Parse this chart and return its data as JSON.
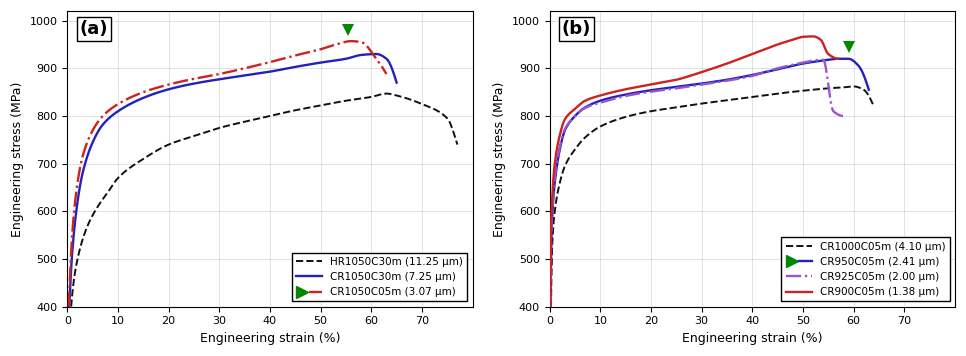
{
  "panel_a": {
    "label": "(a)",
    "curves": [
      {
        "name": "HR1050C30m (11.25 μm)",
        "color": "#111111",
        "linestyle": "dashed",
        "linewidth": 1.4,
        "points_x": [
          0,
          0.12,
          0.5,
          1.0,
          2.0,
          4.0,
          6.0,
          8.0,
          10.0,
          15.0,
          20.0,
          25.0,
          30.0,
          35.0,
          40.0,
          45.0,
          50.0,
          55.0,
          60.0,
          63.0,
          65.0,
          70.0,
          75.0,
          77.0
        ],
        "points_y": [
          0,
          100,
          350,
          430,
          500,
          570,
          610,
          640,
          670,
          710,
          740,
          758,
          775,
          788,
          800,
          812,
          822,
          832,
          840,
          847,
          843,
          825,
          795,
          740
        ],
        "has_plot_marker": false,
        "has_legend_marker": false
      },
      {
        "name": "CR1050C30m (7.25 μm)",
        "color": "#2222bb",
        "linestyle": "solid",
        "linewidth": 1.7,
        "points_x": [
          0,
          0.1,
          0.3,
          0.5,
          1.0,
          2.0,
          3.0,
          5.0,
          7.0,
          10.0,
          15.0,
          20.0,
          25.0,
          30.0,
          35.0,
          40.0,
          45.0,
          50.0,
          55.0,
          58.0,
          61.0,
          63.0,
          65.0
        ],
        "points_y": [
          0,
          200,
          380,
          430,
          520,
          620,
          680,
          745,
          782,
          810,
          838,
          856,
          868,
          877,
          885,
          893,
          903,
          912,
          920,
          928,
          930,
          920,
          870
        ],
        "has_plot_marker": false,
        "has_legend_marker": false
      },
      {
        "name": "CR1050C05m (3.07 μm)",
        "color": "#cc2222",
        "linestyle": "dashdot",
        "linewidth": 1.7,
        "points_x": [
          0,
          0.1,
          0.3,
          0.5,
          1.0,
          2.0,
          3.0,
          5.0,
          7.0,
          10.0,
          15.0,
          20.0,
          25.0,
          30.0,
          35.0,
          40.0,
          45.0,
          50.0,
          53.0,
          56.0,
          58.0,
          61.0,
          63.0
        ],
        "points_y": [
          0,
          250,
          410,
          460,
          560,
          660,
          715,
          770,
          800,
          825,
          850,
          866,
          878,
          888,
          900,
          913,
          927,
          940,
          950,
          957,
          955,
          920,
          888
        ],
        "has_plot_marker": true,
        "plot_marker_x": 55.5,
        "plot_marker_y": 980,
        "marker_color": "#008800",
        "has_legend_marker": true,
        "legend_marker_color": "#008800"
      }
    ],
    "xlabel": "Engineering strain (%)",
    "ylabel": "Engineering stress (MPa)",
    "xlim": [
      0,
      80
    ],
    "ylim": [
      400,
      1020
    ],
    "xticks": [
      0,
      10,
      20,
      30,
      40,
      50,
      60,
      70
    ],
    "yticks": [
      400,
      500,
      600,
      700,
      800,
      900,
      1000
    ],
    "legend_loc": "lower right",
    "legend_bbox": null
  },
  "panel_b": {
    "label": "(b)",
    "curves": [
      {
        "name": "CR1000C05m (4.10 μm)",
        "color": "#111111",
        "linestyle": "dashed",
        "linewidth": 1.4,
        "points_x": [
          0,
          0.15,
          0.5,
          1.0,
          2.0,
          3.0,
          5.0,
          7.0,
          10.0,
          15.0,
          20.0,
          25.0,
          30.0,
          35.0,
          40.0,
          45.0,
          50.0,
          55.0,
          58.0,
          60.0,
          62.0,
          64.0
        ],
        "points_y": [
          0,
          300,
          530,
          600,
          660,
          695,
          730,
          755,
          778,
          798,
          810,
          818,
          826,
          833,
          840,
          847,
          853,
          858,
          860,
          862,
          855,
          820
        ],
        "has_plot_marker": false,
        "has_legend_marker": false
      },
      {
        "name": "CR950C05m (2.41 μm)",
        "color": "#2222bb",
        "linestyle": "solid",
        "linewidth": 1.7,
        "points_x": [
          0,
          0.1,
          0.3,
          0.5,
          1.0,
          2.0,
          3.0,
          5.0,
          7.0,
          10.0,
          15.0,
          20.0,
          25.0,
          30.0,
          35.0,
          40.0,
          45.0,
          50.0,
          53.0,
          55.0,
          57.0,
          59.0,
          61.0,
          63.0
        ],
        "points_y": [
          0,
          350,
          530,
          590,
          660,
          730,
          770,
          800,
          818,
          832,
          845,
          854,
          861,
          868,
          876,
          886,
          898,
          910,
          915,
          918,
          920,
          920,
          905,
          855
        ],
        "has_plot_marker": true,
        "plot_marker_x": 59.0,
        "plot_marker_y": 945,
        "marker_color": "#008800",
        "has_legend_marker": true,
        "legend_marker_color": "#008800"
      },
      {
        "name": "CR925C05m (2.00 μm)",
        "color": "#9955cc",
        "linestyle": "dashdot",
        "linewidth": 1.7,
        "points_x": [
          0,
          0.1,
          0.3,
          0.5,
          1.0,
          2.0,
          3.0,
          5.0,
          7.0,
          10.0,
          15.0,
          20.0,
          25.0,
          30.0,
          35.0,
          40.0,
          45.0,
          50.0,
          52.0,
          54.0,
          56.0,
          58.0
        ],
        "points_y": [
          0,
          370,
          545,
          600,
          670,
          735,
          772,
          800,
          817,
          828,
          842,
          851,
          858,
          866,
          874,
          884,
          900,
          912,
          916,
          918,
          810,
          800
        ],
        "has_plot_marker": false,
        "has_legend_marker": false
      },
      {
        "name": "CR900C05m (1.38 μm)",
        "color": "#cc2222",
        "linestyle": "solid",
        "linewidth": 1.7,
        "points_x": [
          0,
          0.1,
          0.3,
          0.5,
          1.0,
          2.0,
          3.0,
          5.0,
          7.0,
          10.0,
          15.0,
          20.0,
          25.0,
          30.0,
          35.0,
          40.0,
          45.0,
          48.0,
          50.0,
          52.0,
          53.5,
          55.0,
          57.0
        ],
        "points_y": [
          0,
          400,
          580,
          630,
          700,
          760,
          793,
          815,
          832,
          843,
          856,
          866,
          876,
          892,
          910,
          930,
          950,
          960,
          966,
          967,
          960,
          930,
          920
        ],
        "has_plot_marker": false,
        "has_legend_marker": false
      }
    ],
    "xlabel": "Engineering strain (%)",
    "ylabel": "Engineering stress (MPa)",
    "xlim": [
      0,
      80
    ],
    "ylim": [
      400,
      1020
    ],
    "xticks": [
      0,
      10,
      20,
      30,
      40,
      50,
      60,
      70
    ],
    "yticks": [
      400,
      500,
      600,
      700,
      800,
      900,
      1000
    ],
    "legend_loc": "lower right",
    "legend_bbox": null
  },
  "figure": {
    "bg_color": "white",
    "grid_color": "#cccccc",
    "grid_alpha": 0.8,
    "grid_linewidth": 0.5,
    "legend_fontsize": 7.5,
    "label_fontsize": 9,
    "tick_fontsize": 8,
    "panel_label_fontsize": 13
  }
}
